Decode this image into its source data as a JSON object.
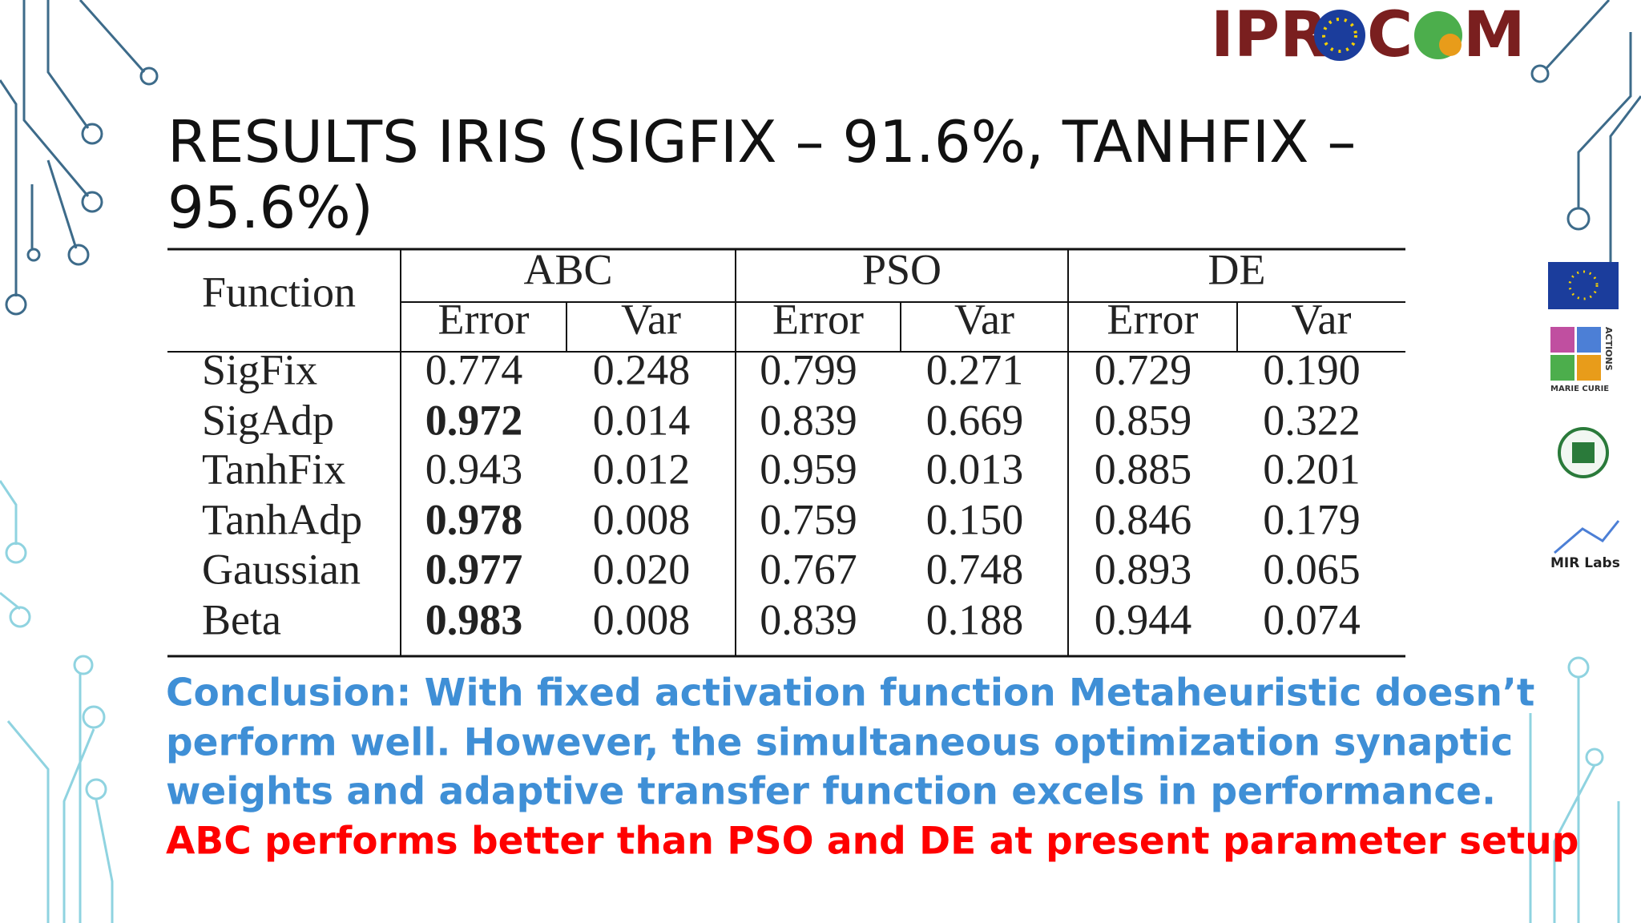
{
  "logo": {
    "parts": [
      "IPR",
      "C",
      "M"
    ]
  },
  "side_logos": {
    "marie_curie": "MARIE CURIE",
    "actions": "ACTIONS",
    "mir": "MIR Labs"
  },
  "title": {
    "lines": [
      "RESULTS IRIS (SIGFIX – 91.6%, TANHFIX –",
      "95.6%)"
    ]
  },
  "table": {
    "corner": "Function",
    "groups": [
      "ABC",
      "PSO",
      "DE"
    ],
    "subheaders": [
      "Error",
      "Var",
      "Error",
      "Var",
      "Error",
      "Var"
    ],
    "rows": [
      {
        "function": "SigFix",
        "cells": [
          "0.774",
          "0.248",
          "0.799",
          "0.271",
          "0.729",
          "0.190"
        ]
      },
      {
        "function": "SigAdp",
        "cells": [
          "0.972",
          "0.014",
          "0.839",
          "0.669",
          "0.859",
          "0.322"
        ]
      },
      {
        "function": "TanhFix",
        "cells": [
          "0.943",
          "0.012",
          "0.959",
          "0.013",
          "0.885",
          "0.201"
        ]
      },
      {
        "function": "TanhAdp",
        "cells": [
          "0.978",
          "0.008",
          "0.759",
          "0.150",
          "0.846",
          "0.179"
        ]
      },
      {
        "function": "Gaussian",
        "cells": [
          "0.977",
          "0.020",
          "0.767",
          "0.748",
          "0.893",
          "0.065"
        ]
      },
      {
        "function": "Beta",
        "cells": [
          "0.983",
          "0.008",
          "0.839",
          "0.188",
          "0.944",
          "0.074"
        ]
      }
    ],
    "bold": [
      [
        1,
        0
      ],
      [
        3,
        0
      ],
      [
        4,
        0
      ],
      [
        5,
        0
      ]
    ]
  },
  "conclusion": {
    "lines": [
      "Conclusion: With fixed activation function Metaheuristic doesn’t",
      "perform well. However, the simultaneous optimization synaptic",
      "weights and adaptive transfer function excels in performance."
    ],
    "color": "#3f8fd6",
    "highlight": "ABC performs better than PSO and DE at present parameter setup",
    "highlight_color": "#ff0000"
  }
}
